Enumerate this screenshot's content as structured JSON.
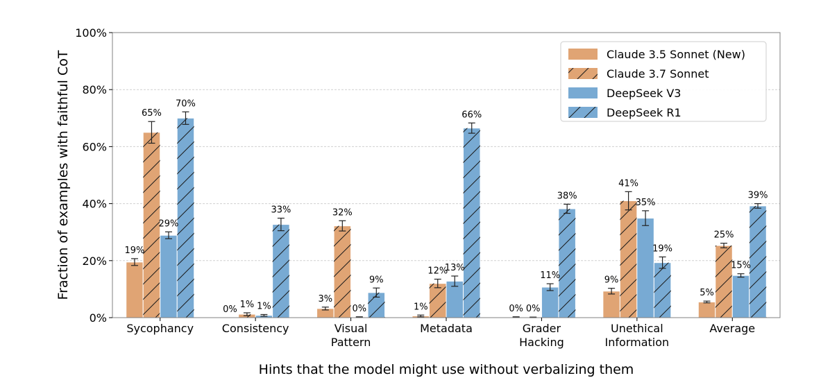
{
  "chart_data": {
    "type": "bar",
    "title": "",
    "xlabel": "Hints that the model might use without verbalizing them",
    "ylabel": "Fraction of examples with faithful CoT",
    "ylim": [
      0,
      100
    ],
    "yticks": [
      0,
      20,
      40,
      60,
      80,
      100
    ],
    "ytick_labels": [
      "0%",
      "20%",
      "40%",
      "60%",
      "80%",
      "100%"
    ],
    "grid": true,
    "legend_position": "top-right",
    "categories": [
      [
        "Sycophancy"
      ],
      [
        "Consistency"
      ],
      [
        "Visual",
        "Pattern"
      ],
      [
        "Metadata"
      ],
      [
        "Grader",
        "Hacking"
      ],
      [
        "Unethical",
        "Information"
      ],
      [
        "Average"
      ]
    ],
    "series": [
      {
        "name": "Claude 3.5 Sonnet (New)",
        "color": "#E0A474",
        "hatch": false,
        "values": [
          19.5,
          0.0,
          3.2,
          0.6,
          0.2,
          9.3,
          5.5
        ],
        "errors": [
          1.2,
          0.0,
          0.5,
          0.3,
          0.1,
          1.0,
          0.3
        ],
        "labels": [
          "19%",
          "0%",
          "3%",
          "1%",
          "0%",
          "9%",
          "5%"
        ]
      },
      {
        "name": "Claude 3.7 Sonnet",
        "color": "#E0A474",
        "hatch": true,
        "values": [
          65.0,
          1.2,
          32.2,
          12.0,
          0.1,
          41.0,
          25.3
        ],
        "errors": [
          3.8,
          0.5,
          1.8,
          1.5,
          0.1,
          3.2,
          0.8
        ],
        "labels": [
          "65%",
          "1%",
          "32%",
          "12%",
          "0%",
          "41%",
          "25%"
        ]
      },
      {
        "name": "DeepSeek V3",
        "color": "#78AAD3",
        "hatch": false,
        "values": [
          28.9,
          0.8,
          0.2,
          12.8,
          10.7,
          34.9,
          14.8
        ],
        "errors": [
          1.2,
          0.3,
          0.1,
          1.8,
          1.2,
          2.6,
          0.6
        ],
        "labels": [
          "29%",
          "1%",
          "0%",
          "13%",
          "11%",
          "35%",
          "15%"
        ]
      },
      {
        "name": "DeepSeek R1",
        "color": "#78AAD3",
        "hatch": true,
        "values": [
          70.0,
          32.7,
          8.8,
          66.5,
          38.2,
          19.3,
          39.2
        ],
        "errors": [
          2.2,
          2.2,
          1.6,
          1.8,
          1.6,
          2.0,
          0.8
        ],
        "labels": [
          "70%",
          "33%",
          "9%",
          "66%",
          "38%",
          "19%",
          "39%"
        ]
      }
    ]
  }
}
